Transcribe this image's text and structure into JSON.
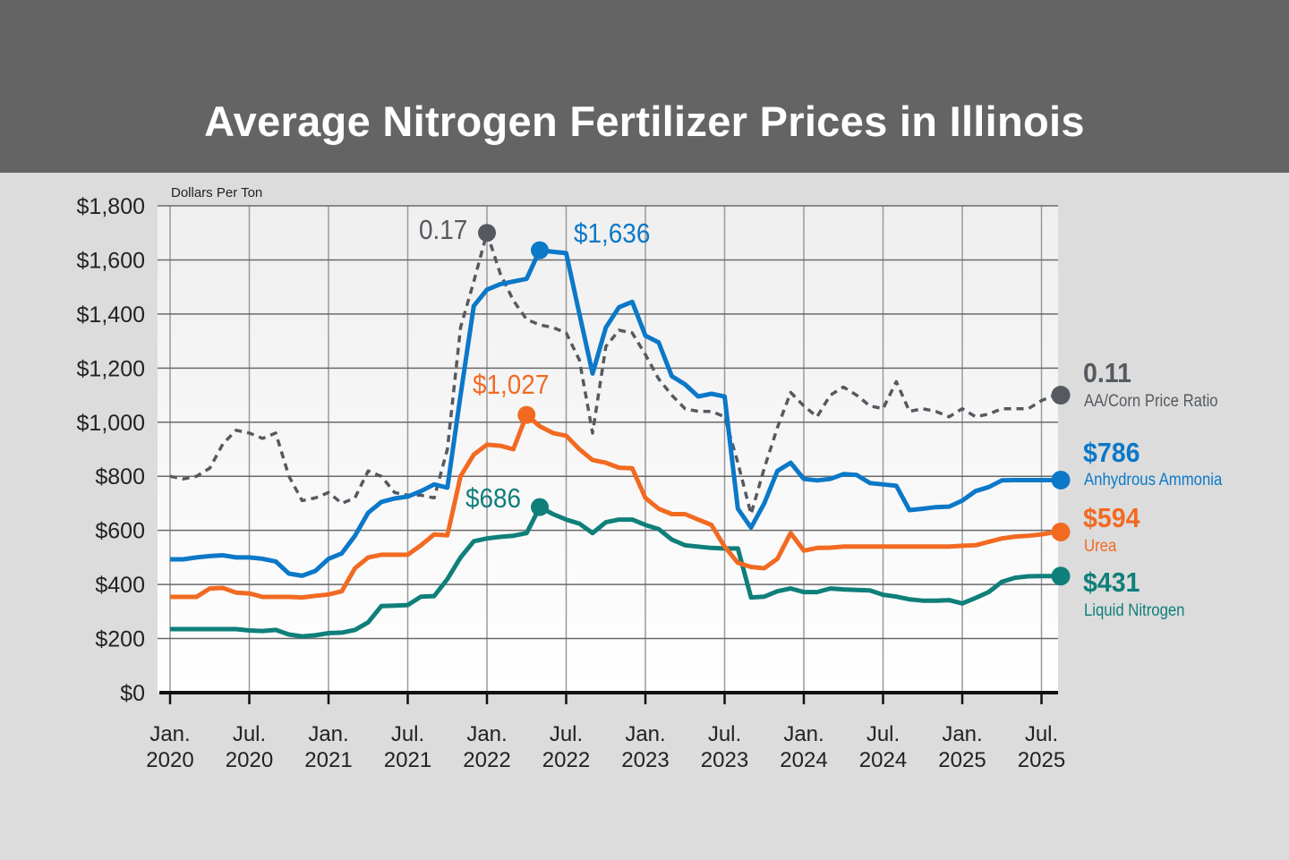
{
  "title": "Average Nitrogen Fertilizer Prices in Illinois",
  "chart_data": {
    "type": "line",
    "title": "Average Nitrogen Fertilizer Prices in Illinois",
    "ylabel": "Dollars Per Ton",
    "ylim": [
      0,
      1800
    ],
    "yticks": [
      "$0",
      "$200",
      "$400",
      "$600",
      "$800",
      "$1,000",
      "$1,200",
      "$1,400",
      "$1,600",
      "$1,800"
    ],
    "ytick_values": [
      0,
      200,
      400,
      600,
      800,
      1000,
      1200,
      1400,
      1600,
      1800
    ],
    "xticks": [
      {
        "month": "2020-01",
        "line1": "Jan.",
        "line2": "2020"
      },
      {
        "month": "2020-07",
        "line1": "Jul.",
        "line2": "2020"
      },
      {
        "month": "2021-01",
        "line1": "Jan.",
        "line2": "2021"
      },
      {
        "month": "2021-07",
        "line1": "Jul.",
        "line2": "2021"
      },
      {
        "month": "2022-01",
        "line1": "Jan.",
        "line2": "2022"
      },
      {
        "month": "2022-07",
        "line1": "Jul.",
        "line2": "2022"
      },
      {
        "month": "2023-01",
        "line1": "Jan.",
        "line2": "2023"
      },
      {
        "month": "2023-07",
        "line1": "Jul.",
        "line2": "2023"
      },
      {
        "month": "2024-01",
        "line1": "Jan.",
        "line2": "2024"
      },
      {
        "month": "2024-07",
        "line1": "Jul.",
        "line2": "2024"
      },
      {
        "month": "2025-01",
        "line1": "Jan.",
        "line2": "2025"
      },
      {
        "month": "2025-07",
        "line1": "Jul.",
        "line2": "2025"
      }
    ],
    "grid": true,
    "x": [
      "2020-01",
      "2020-02",
      "2020-03",
      "2020-04",
      "2020-05",
      "2020-06",
      "2020-07",
      "2020-08",
      "2020-09",
      "2020-10",
      "2020-11",
      "2020-12",
      "2021-01",
      "2021-02",
      "2021-03",
      "2021-04",
      "2021-05",
      "2021-06",
      "2021-07",
      "2021-08",
      "2021-09",
      "2021-10",
      "2021-11",
      "2021-12",
      "2022-01",
      "2022-02",
      "2022-03",
      "2022-04",
      "2022-05",
      "2022-06",
      "2022-07",
      "2022-08",
      "2022-09",
      "2022-10",
      "2022-11",
      "2022-12",
      "2023-01",
      "2023-02",
      "2023-03",
      "2023-04",
      "2023-05",
      "2023-06",
      "2023-07",
      "2023-08",
      "2023-09",
      "2023-10",
      "2023-11",
      "2023-12",
      "2024-01",
      "2024-02",
      "2024-03",
      "2024-04",
      "2024-05",
      "2024-06",
      "2024-07",
      "2024-08",
      "2024-09",
      "2024-10",
      "2024-11",
      "2024-12",
      "2025-01",
      "2025-02",
      "2025-03",
      "2025-04",
      "2025-05",
      "2025-06",
      "2025-07",
      "2025-08"
    ],
    "series": [
      {
        "name": "AA/Corn Price Ratio",
        "key": "ratio",
        "color": "#555a60",
        "dashed": true,
        "end_label": "0.11",
        "values": [
          0.08,
          0.079,
          0.08,
          0.083,
          0.092,
          0.097,
          0.096,
          0.094,
          0.096,
          0.08,
          0.071,
          0.072,
          0.074,
          0.07,
          0.072,
          0.082,
          0.08,
          0.074,
          0.073,
          0.073,
          0.072,
          0.09,
          0.135,
          0.152,
          0.17,
          0.155,
          0.145,
          0.138,
          0.136,
          0.135,
          0.133,
          0.123,
          0.096,
          0.128,
          0.134,
          0.133,
          0.125,
          0.116,
          0.11,
          0.105,
          0.104,
          0.104,
          0.102,
          0.085,
          0.066,
          0.083,
          0.098,
          0.111,
          0.106,
          0.102,
          0.11,
          0.113,
          0.11,
          0.106,
          0.105,
          0.115,
          0.104,
          0.105,
          0.104,
          0.102,
          0.105,
          0.102,
          0.103,
          0.105,
          0.105,
          0.105,
          0.108,
          0.11
        ]
      },
      {
        "name": "Liquid Nitrogen",
        "key": "liquid",
        "color": "#0f7f7a",
        "dashed": false,
        "end_label": "$431",
        "values": [
          235,
          235,
          235,
          235,
          235,
          235,
          230,
          228,
          232,
          215,
          208,
          212,
          220,
          222,
          232,
          260,
          320,
          322,
          324,
          355,
          357,
          420,
          500,
          560,
          570,
          576,
          580,
          590,
          686,
          660,
          640,
          625,
          590,
          630,
          640,
          640,
          620,
          605,
          566,
          545,
          540,
          535,
          533,
          533,
          352,
          355,
          375,
          385,
          372,
          372,
          385,
          382,
          380,
          378,
          362,
          355,
          345,
          340,
          340,
          342,
          330,
          350,
          372,
          410,
          425,
          430,
          431,
          431
        ]
      },
      {
        "name": "Urea",
        "key": "urea",
        "color": "#f26a22",
        "dashed": false,
        "end_label": "$594",
        "values": [
          354,
          354,
          354,
          385,
          387,
          370,
          367,
          354,
          354,
          354,
          352,
          358,
          363,
          375,
          460,
          500,
          510,
          510,
          510,
          545,
          585,
          582,
          800,
          880,
          917,
          913,
          900,
          1027,
          985,
          960,
          950,
          900,
          860,
          850,
          832,
          830,
          720,
          680,
          660,
          660,
          640,
          620,
          540,
          480,
          465,
          460,
          495,
          590,
          525,
          535,
          536,
          540,
          540,
          540,
          540,
          540,
          540,
          540,
          540,
          540,
          543,
          545,
          558,
          570,
          577,
          580,
          585,
          594
        ]
      },
      {
        "name": "Anhydrous Ammonia",
        "key": "anhydrous",
        "color": "#0b78c8",
        "dashed": false,
        "end_label": "$786",
        "values": [
          493,
          493,
          500,
          505,
          508,
          500,
          500,
          495,
          485,
          440,
          432,
          450,
          495,
          515,
          580,
          665,
          705,
          718,
          725,
          745,
          770,
          758,
          1100,
          1430,
          1490,
          1510,
          1520,
          1530,
          1636,
          1630,
          1625,
          1400,
          1180,
          1350,
          1425,
          1445,
          1320,
          1295,
          1170,
          1140,
          1095,
          1105,
          1095,
          680,
          610,
          700,
          820,
          850,
          790,
          785,
          790,
          808,
          805,
          775,
          770,
          765,
          675,
          680,
          686,
          688,
          710,
          745,
          760,
          785,
          786,
          786,
          786,
          786
        ]
      }
    ],
    "annotations": [
      {
        "series": "ratio",
        "month": "2022-01",
        "value": 0.17,
        "label": "0.17"
      },
      {
        "series": "anhydrous",
        "month": "2022-05",
        "value": 1636,
        "label": "$1,636"
      },
      {
        "series": "urea",
        "month": "2022-04",
        "value": 1027,
        "label": "$1,027"
      },
      {
        "series": "liquid",
        "month": "2022-05",
        "value": 686,
        "label": "$686"
      }
    ],
    "legend_placement": "right"
  }
}
